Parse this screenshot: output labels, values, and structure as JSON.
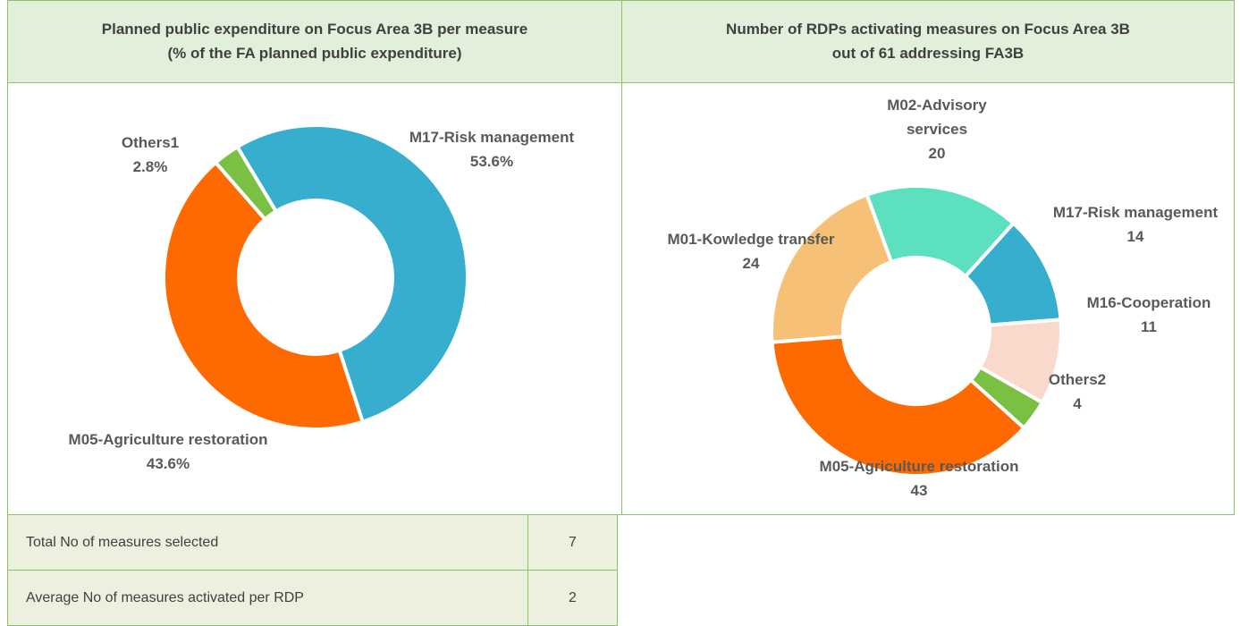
{
  "chart_data": [
    {
      "type": "pie",
      "title": "Planned public expenditure on Focus Area 3B per measure",
      "subtitle": "(% of the FA planned public expenditure)",
      "categories": [
        "M17-Risk management",
        "M05-Agriculture restoration",
        "Others1"
      ],
      "values": [
        53.6,
        43.6,
        2.8
      ],
      "value_labels": [
        "53.6%",
        "43.6%",
        "2.8%"
      ],
      "colors": [
        "#38aecf",
        "#ff6a00",
        "#7ac143"
      ]
    },
    {
      "type": "pie",
      "title": "Number of RDPs activating measures on Focus Area 3B",
      "subtitle": "out of 61 addressing FA3B",
      "categories": [
        "M02-Advisory services",
        "M17-Risk management",
        "M16-Cooperation",
        "Others2",
        "M05-Agriculture restoration",
        "M01-Kowledge transfer"
      ],
      "values": [
        20,
        14,
        11,
        4,
        43,
        24
      ],
      "colors": [
        "#5ce0c0",
        "#38aecf",
        "#f8d9cc",
        "#7ac143",
        "#ff6a00",
        "#f6c177"
      ]
    }
  ],
  "table": {
    "rows": [
      [
        "Total No of measures selected",
        "7"
      ],
      [
        "Average No of measures activated per RDP",
        "2"
      ]
    ]
  }
}
